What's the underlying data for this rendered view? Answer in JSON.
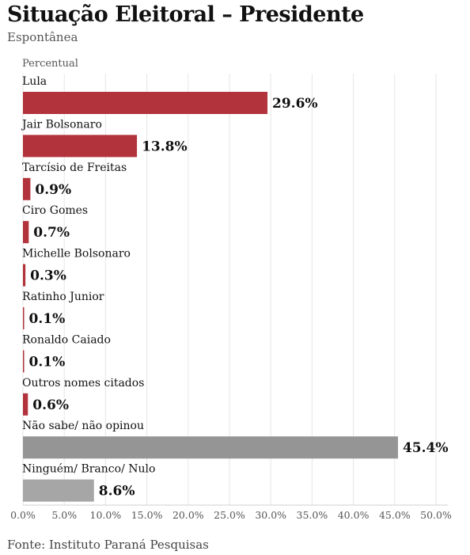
{
  "chart_data": {
    "type": "bar",
    "orientation": "horizontal",
    "title": "Situação Eleitoral – Presidente",
    "subtitle": "Espontânea",
    "ylabel": "Percentual",
    "categories": [
      "Lula",
      "Jair Bolsonaro",
      "Tarcísio de Freitas",
      "Ciro Gomes",
      "Michelle Bolsonaro",
      "Ratinho Junior",
      "Ronaldo Caiado",
      "Outros nomes citados",
      "Não sabe/ não opinou",
      "Ninguém/ Branco/ Nulo"
    ],
    "values": [
      29.6,
      13.8,
      0.9,
      0.7,
      0.3,
      0.1,
      0.1,
      0.6,
      45.4,
      8.6
    ],
    "value_labels": [
      "29.6%",
      "13.8%",
      "0.9%",
      "0.7%",
      "0.3%",
      "0.1%",
      "0.1%",
      "0.6%",
      "45.4%",
      "8.6%"
    ],
    "colors": [
      "#b2333b",
      "#b2333b",
      "#b2333b",
      "#b2333b",
      "#b2333b",
      "#b2333b",
      "#b2333b",
      "#b2333b",
      "#959595",
      "#a6a6a6"
    ],
    "xlim": [
      0,
      50
    ],
    "xticks": [
      "0.0%",
      "5.0%",
      "10.0%",
      "15.0%",
      "20.0%",
      "25.0%",
      "30.0%",
      "35.0%",
      "40.0%",
      "45.0%",
      "50.0%"
    ],
    "grid": true,
    "source": "Fonte: Instituto Paraná Pesquisas"
  }
}
